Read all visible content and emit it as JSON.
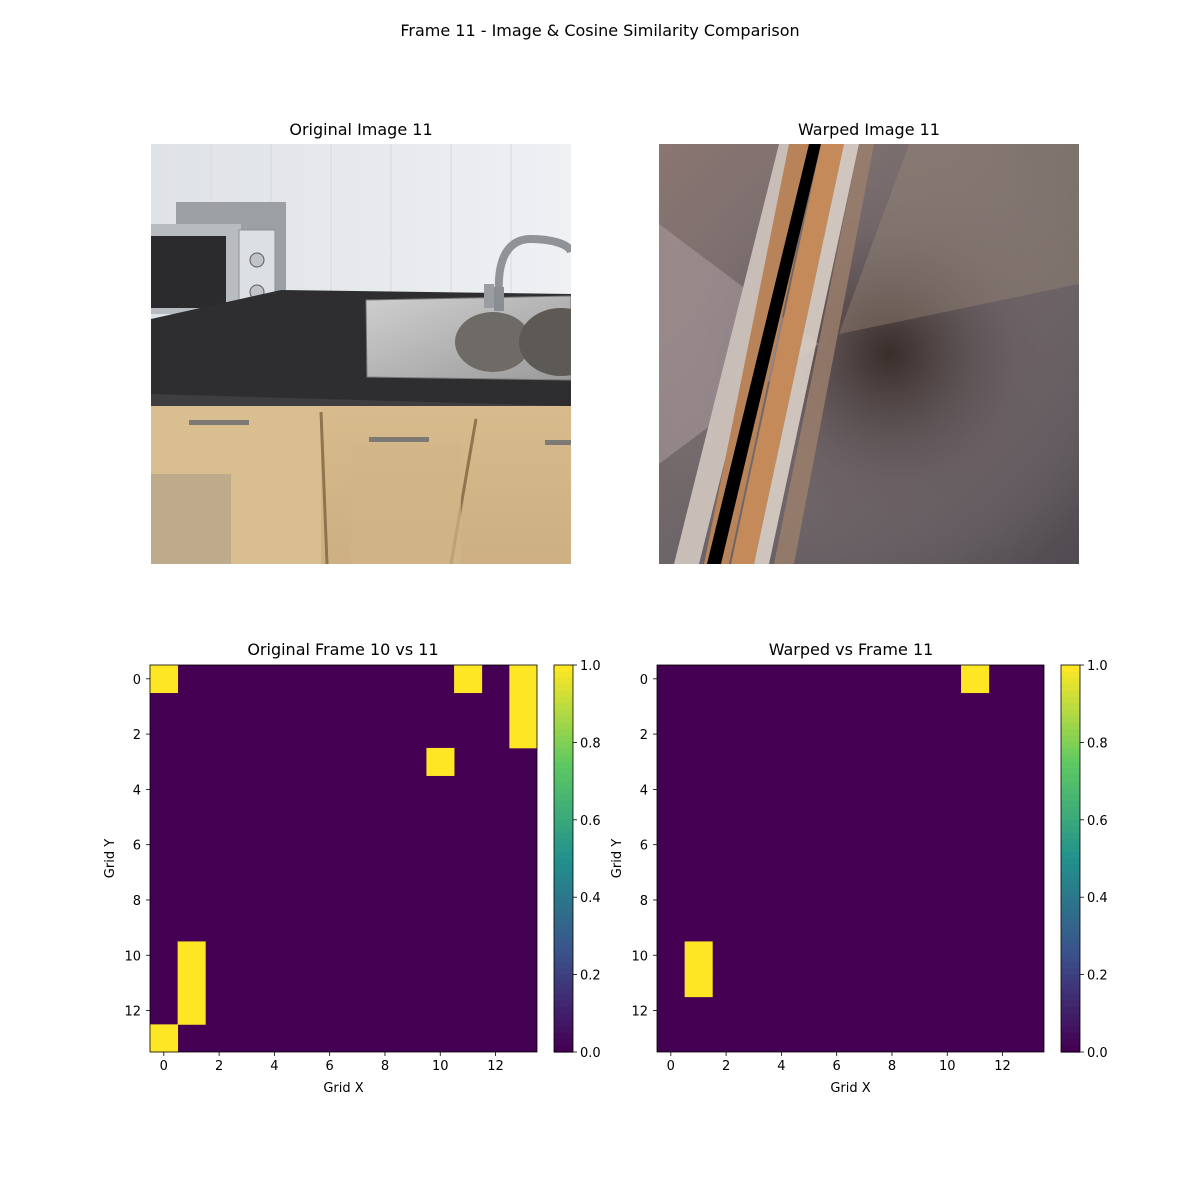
{
  "figure": {
    "suptitle": "Frame 11 - Image & Cosine Similarity Comparison"
  },
  "images": [
    {
      "title": "Original Image 11",
      "content": "kitchen-photo"
    },
    {
      "title": "Warped Image 11",
      "content": "warped-radial-blur"
    }
  ],
  "chart_data": [
    {
      "type": "heatmap",
      "title": "Original Frame 10 vs 11",
      "xlabel": "Grid X",
      "ylabel": "Grid Y",
      "grid_size": [
        14,
        14
      ],
      "xticks": [
        0,
        2,
        4,
        6,
        8,
        10,
        12
      ],
      "yticks": [
        0,
        2,
        4,
        6,
        8,
        10,
        12
      ],
      "colorbar": {
        "ticks": [
          "0.0",
          "0.2",
          "0.4",
          "0.6",
          "0.8",
          "1.0"
        ],
        "range": [
          0,
          1
        ],
        "colormap": "viridis"
      },
      "background_value": 0,
      "cells_value_1": [
        [
          0,
          0
        ],
        [
          11,
          0
        ],
        [
          13,
          0
        ],
        [
          13,
          1
        ],
        [
          13,
          2
        ],
        [
          10,
          3
        ],
        [
          1,
          10
        ],
        [
          1,
          11
        ],
        [
          1,
          12
        ],
        [
          0,
          13
        ]
      ]
    },
    {
      "type": "heatmap",
      "title": "Warped vs Frame 11",
      "xlabel": "Grid X",
      "ylabel": "Grid Y",
      "grid_size": [
        14,
        14
      ],
      "xticks": [
        0,
        2,
        4,
        6,
        8,
        10,
        12
      ],
      "yticks": [
        0,
        2,
        4,
        6,
        8,
        10,
        12
      ],
      "colorbar": {
        "ticks": [
          "0.0",
          "0.2",
          "0.4",
          "0.6",
          "0.8",
          "1.0"
        ],
        "range": [
          0,
          1
        ],
        "colormap": "viridis"
      },
      "background_value": 0,
      "cells_value_1": [
        [
          11,
          0
        ],
        [
          1,
          10
        ],
        [
          1,
          11
        ]
      ]
    }
  ],
  "colors": {
    "low": "#440154",
    "high": "#fde725"
  }
}
